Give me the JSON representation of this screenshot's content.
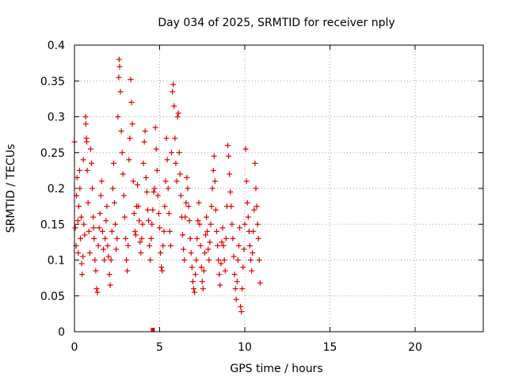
{
  "chart_data": {
    "type": "scatter",
    "title": "Day 034 of 2025, SRMTID for receiver nply",
    "xlabel": "GPS time / hours",
    "ylabel": "SRMTID / TECUs",
    "xlim": [
      0,
      24
    ],
    "ylim": [
      0,
      0.4
    ],
    "x_ticks": [
      0,
      5,
      10,
      15,
      20
    ],
    "x_tick_labels": [
      "0",
      "5",
      "10",
      "15",
      "20"
    ],
    "y_ticks": [
      0,
      0.05,
      0.1,
      0.15,
      0.2,
      0.25,
      0.3,
      0.35,
      0.4
    ],
    "y_tick_labels": [
      "0",
      "0.05",
      "0.1",
      "0.15",
      "0.2",
      "0.25",
      "0.3",
      "0.35",
      "0.4"
    ],
    "grid": true,
    "marker": "plus",
    "color": "#e00000",
    "series": [
      {
        "points": [
          [
            0.0,
            0.265
          ],
          [
            0.05,
            0.145
          ],
          [
            0.1,
            0.12
          ],
          [
            0.12,
            0.19
          ],
          [
            0.15,
            0.215
          ],
          [
            0.2,
            0.155
          ],
          [
            0.22,
            0.11
          ],
          [
            0.25,
            0.175
          ],
          [
            0.3,
            0.225
          ],
          [
            0.32,
            0.2
          ],
          [
            0.35,
            0.13
          ],
          [
            0.4,
            0.16
          ],
          [
            0.42,
            0.095
          ],
          [
            0.45,
            0.08
          ],
          [
            0.5,
            0.105
          ],
          [
            0.52,
            0.24
          ],
          [
            0.55,
            0.15
          ],
          [
            0.6,
            0.135
          ],
          [
            0.65,
            0.3
          ],
          [
            0.67,
            0.29
          ],
          [
            0.7,
            0.27
          ],
          [
            0.72,
            0.265
          ],
          [
            0.75,
            0.225
          ],
          [
            0.8,
            0.18
          ],
          [
            0.85,
            0.14
          ],
          [
            0.9,
            0.11
          ],
          [
            0.95,
            0.255
          ],
          [
            1.0,
            0.235
          ],
          [
            1.05,
            0.2
          ],
          [
            1.1,
            0.16
          ],
          [
            1.12,
            0.145
          ],
          [
            1.15,
            0.13
          ],
          [
            1.2,
            0.1
          ],
          [
            1.25,
            0.085
          ],
          [
            1.3,
            0.06
          ],
          [
            1.35,
            0.055
          ],
          [
            1.4,
            0.12
          ],
          [
            1.45,
            0.145
          ],
          [
            1.5,
            0.165
          ],
          [
            1.55,
            0.19
          ],
          [
            1.6,
            0.21
          ],
          [
            1.65,
            0.14
          ],
          [
            1.7,
            0.115
          ],
          [
            1.75,
            0.1
          ],
          [
            1.8,
            0.13
          ],
          [
            1.85,
            0.155
          ],
          [
            1.9,
            0.175
          ],
          [
            1.95,
            0.12
          ],
          [
            2.0,
            0.105
          ],
          [
            2.05,
            0.08
          ],
          [
            2.1,
            0.065
          ],
          [
            2.15,
            0.1
          ],
          [
            2.2,
            0.14
          ],
          [
            2.25,
            0.2
          ],
          [
            2.3,
            0.235
          ],
          [
            2.35,
            0.18
          ],
          [
            2.4,
            0.15
          ],
          [
            2.45,
            0.115
          ],
          [
            2.5,
            0.13
          ],
          [
            2.55,
            0.3
          ],
          [
            2.6,
            0.355
          ],
          [
            2.62,
            0.38
          ],
          [
            2.65,
            0.37
          ],
          [
            2.7,
            0.335
          ],
          [
            2.75,
            0.28
          ],
          [
            2.8,
            0.25
          ],
          [
            2.85,
            0.22
          ],
          [
            2.9,
            0.19
          ],
          [
            2.95,
            0.16
          ],
          [
            3.0,
            0.13
          ],
          [
            3.05,
            0.1
          ],
          [
            3.1,
            0.085
          ],
          [
            3.15,
            0.12
          ],
          [
            3.2,
            0.24
          ],
          [
            3.25,
            0.27
          ],
          [
            3.3,
            0.352
          ],
          [
            3.35,
            0.32
          ],
          [
            3.4,
            0.29
          ],
          [
            3.45,
            0.21
          ],
          [
            3.5,
            0.165
          ],
          [
            3.55,
            0.14
          ],
          [
            3.6,
            0.135
          ],
          [
            3.65,
            0.175
          ],
          [
            3.7,
            0.205
          ],
          [
            3.75,
            0.175
          ],
          [
            3.8,
            0.155
          ],
          [
            3.85,
            0.125
          ],
          [
            3.9,
            0.11
          ],
          [
            3.95,
            0.13
          ],
          [
            4.0,
            0.15
          ],
          [
            4.05,
            0.235
          ],
          [
            4.1,
            0.265
          ],
          [
            4.15,
            0.28
          ],
          [
            4.2,
            0.215
          ],
          [
            4.25,
            0.195
          ],
          [
            4.3,
            0.17
          ],
          [
            4.35,
            0.155
          ],
          [
            4.4,
            0.12
          ],
          [
            4.45,
            0.1
          ],
          [
            4.5,
            0.13
          ],
          [
            4.55,
            0.15
          ],
          [
            4.6,
            0.17
          ],
          [
            4.65,
            0.195
          ],
          [
            4.7,
            0.2
          ],
          [
            4.75,
            0.285
          ],
          [
            4.8,
            0.255
          ],
          [
            4.85,
            0.225
          ],
          [
            4.9,
            0.19
          ],
          [
            4.95,
            0.165
          ],
          [
            5.0,
            0.145
          ],
          [
            5.05,
            0.11
          ],
          [
            5.1,
            0.09
          ],
          [
            5.15,
            0.085
          ],
          [
            5.2,
            0.12
          ],
          [
            5.25,
            0.14
          ],
          [
            5.3,
            0.175
          ],
          [
            5.35,
            0.21
          ],
          [
            5.4,
            0.27
          ],
          [
            5.45,
            0.24
          ],
          [
            5.5,
            0.2
          ],
          [
            5.55,
            0.165
          ],
          [
            5.6,
            0.14
          ],
          [
            5.65,
            0.12
          ],
          [
            5.7,
            0.25
          ],
          [
            5.75,
            0.335
          ],
          [
            5.8,
            0.345
          ],
          [
            5.85,
            0.315
          ],
          [
            5.9,
            0.27
          ],
          [
            5.95,
            0.235
          ],
          [
            6.0,
            0.21
          ],
          [
            6.05,
            0.3
          ],
          [
            6.1,
            0.305
          ],
          [
            6.15,
            0.25
          ],
          [
            6.2,
            0.22
          ],
          [
            6.25,
            0.19
          ],
          [
            6.3,
            0.16
          ],
          [
            6.35,
            0.135
          ],
          [
            6.4,
            0.115
          ],
          [
            6.45,
            0.1
          ],
          [
            6.5,
            0.16
          ],
          [
            6.55,
            0.18
          ],
          [
            6.6,
            0.215
          ],
          [
            6.65,
            0.2
          ],
          [
            6.7,
            0.175
          ],
          [
            6.75,
            0.155
          ],
          [
            6.8,
            0.13
          ],
          [
            6.85,
            0.11
          ],
          [
            6.9,
            0.09
          ],
          [
            6.95,
            0.07
          ],
          [
            7.0,
            0.06
          ],
          [
            7.05,
            0.055
          ],
          [
            7.1,
            0.08
          ],
          [
            7.15,
            0.1
          ],
          [
            7.2,
            0.13
          ],
          [
            7.25,
            0.155
          ],
          [
            7.3,
            0.18
          ],
          [
            7.35,
            0.15
          ],
          [
            7.4,
            0.12
          ],
          [
            7.45,
            0.09
          ],
          [
            7.5,
            0.07
          ],
          [
            7.55,
            0.06
          ],
          [
            7.6,
            0.085
          ],
          [
            7.65,
            0.11
          ],
          [
            7.7,
            0.135
          ],
          [
            7.75,
            0.16
          ],
          [
            7.8,
            0.14
          ],
          [
            7.85,
            0.115
          ],
          [
            7.9,
            0.1
          ],
          [
            7.95,
            0.125
          ],
          [
            8.0,
            0.15
          ],
          [
            8.05,
            0.175
          ],
          [
            8.1,
            0.2
          ],
          [
            8.15,
            0.225
          ],
          [
            8.2,
            0.245
          ],
          [
            8.25,
            0.21
          ],
          [
            8.3,
            0.17
          ],
          [
            8.35,
            0.14
          ],
          [
            8.4,
            0.12
          ],
          [
            8.45,
            0.1
          ],
          [
            8.5,
            0.08
          ],
          [
            8.55,
            0.065
          ],
          [
            8.6,
            0.095
          ],
          [
            8.65,
            0.125
          ],
          [
            8.7,
            0.145
          ],
          [
            8.75,
            0.12
          ],
          [
            8.8,
            0.1
          ],
          [
            8.85,
            0.085
          ],
          [
            8.9,
            0.13
          ],
          [
            8.95,
            0.175
          ],
          [
            9.0,
            0.26
          ],
          [
            9.05,
            0.245
          ],
          [
            9.1,
            0.22
          ],
          [
            9.15,
            0.195
          ],
          [
            9.2,
            0.175
          ],
          [
            9.25,
            0.15
          ],
          [
            9.3,
            0.13
          ],
          [
            9.35,
            0.105
          ],
          [
            9.4,
            0.08
          ],
          [
            9.45,
            0.06
          ],
          [
            9.5,
            0.045
          ],
          [
            9.55,
            0.07
          ],
          [
            9.6,
            0.1
          ],
          [
            9.65,
            0.12
          ],
          [
            9.7,
            0.145
          ],
          [
            9.75,
            0.035
          ],
          [
            9.8,
            0.028
          ],
          [
            9.85,
            0.06
          ],
          [
            9.9,
            0.09
          ],
          [
            9.95,
            0.115
          ],
          [
            10.0,
            0.15
          ],
          [
            10.05,
            0.255
          ],
          [
            10.1,
            0.21
          ],
          [
            10.15,
            0.18
          ],
          [
            10.2,
            0.16
          ],
          [
            10.25,
            0.14
          ],
          [
            10.3,
            0.12
          ],
          [
            10.35,
            0.1
          ],
          [
            10.4,
            0.085
          ],
          [
            10.45,
            0.11
          ],
          [
            10.5,
            0.14
          ],
          [
            10.55,
            0.17
          ],
          [
            10.6,
            0.235
          ],
          [
            10.65,
            0.2
          ],
          [
            10.7,
            0.175
          ],
          [
            10.75,
            0.15
          ],
          [
            10.8,
            0.13
          ],
          [
            10.85,
            0.1
          ],
          [
            10.9,
            0.068
          ]
        ]
      }
    ],
    "bottom_marks": [
      4.6
    ]
  }
}
